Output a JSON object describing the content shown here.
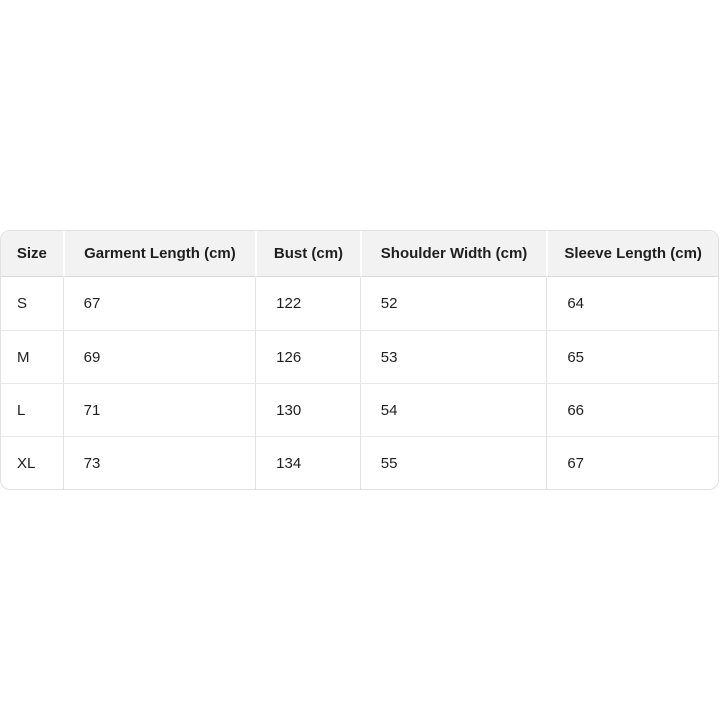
{
  "chart_data": {
    "type": "table",
    "columns": [
      "Size",
      "Garment Length (cm)",
      "Bust (cm)",
      "Shoulder Width (cm)",
      "Sleeve Length (cm)"
    ],
    "rows": [
      [
        "S",
        "67",
        "122",
        "52",
        "64"
      ],
      [
        "M",
        "69",
        "126",
        "53",
        "65"
      ],
      [
        "L",
        "71",
        "130",
        "54",
        "66"
      ],
      [
        "XL",
        "73",
        "134",
        "55",
        "67"
      ]
    ]
  },
  "colors": {
    "header_bg": "#f2f2f2",
    "outer_border": "#e1e1e1",
    "row_divider": "#e8e8e8",
    "column_divider": "#e3e3e3",
    "text": "#1f1f1f",
    "page_bg": "#ffffff"
  }
}
